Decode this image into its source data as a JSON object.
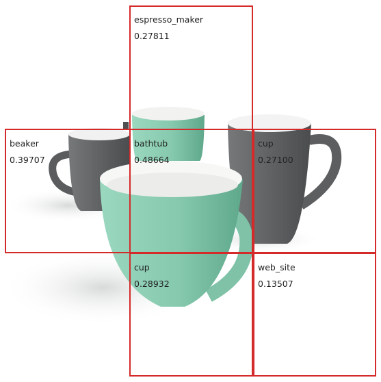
{
  "detections": [
    {
      "id": "espresso-maker-box",
      "label": "espresso_maker",
      "score": "0.27811"
    },
    {
      "id": "beaker-box",
      "label": "beaker",
      "score": "0.39707"
    },
    {
      "id": "bathtub-box",
      "label": "bathtub",
      "score": "0.48664"
    },
    {
      "id": "cup-box-right",
      "label": "cup",
      "score": "0.27100"
    },
    {
      "id": "cup-box-bottom",
      "label": "cup",
      "score": "0.28932"
    },
    {
      "id": "web-site-box",
      "label": "web_site",
      "score": "0.13507"
    }
  ],
  "colors": {
    "box": "#d42a2a",
    "mint_mug": "#8ecfb4",
    "gray_mug": "#5f6163"
  }
}
